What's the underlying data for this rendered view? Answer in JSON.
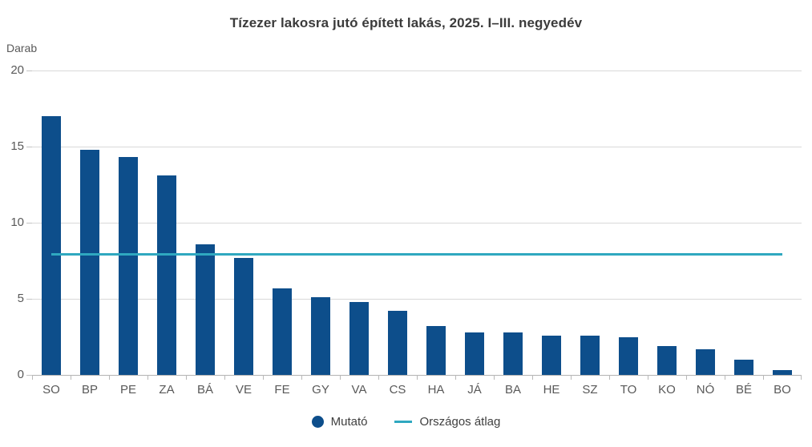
{
  "chart_data": {
    "type": "bar",
    "title": "Tízezer lakosra jutó épített lakás, 2025. I–III. negyedév",
    "ylabel": "Darab",
    "xlabel": "",
    "ylim": [
      0,
      20
    ],
    "yticks": [
      0,
      5,
      10,
      15,
      20
    ],
    "grid": true,
    "legend_position": "bottom-center",
    "categories": [
      "SO",
      "BP",
      "PE",
      "ZA",
      "BÁ",
      "VE",
      "FE",
      "GY",
      "VA",
      "CS",
      "HA",
      "JÁ",
      "BA",
      "HE",
      "SZ",
      "TO",
      "KO",
      "NÓ",
      "BÉ",
      "BO"
    ],
    "series": [
      {
        "name": "Mutató",
        "type": "column",
        "color": "#0d4e8b",
        "values": [
          17.0,
          14.8,
          14.3,
          13.1,
          8.6,
          7.7,
          5.7,
          5.1,
          4.8,
          4.2,
          3.2,
          2.8,
          2.8,
          2.6,
          2.6,
          2.5,
          1.9,
          1.7,
          1.0,
          0.3
        ]
      },
      {
        "name": "Országos átlag",
        "type": "line",
        "color": "#2fa8c0",
        "value": 7.9
      }
    ]
  },
  "colors": {
    "bar": "#0d4e8b",
    "average_line": "#2fa8c0",
    "grid": "#d9d9d9",
    "axis": "#b3b3b3",
    "tick": "#b9b9b9",
    "label_text": "#595959",
    "title_text": "#3b3b3b"
  }
}
